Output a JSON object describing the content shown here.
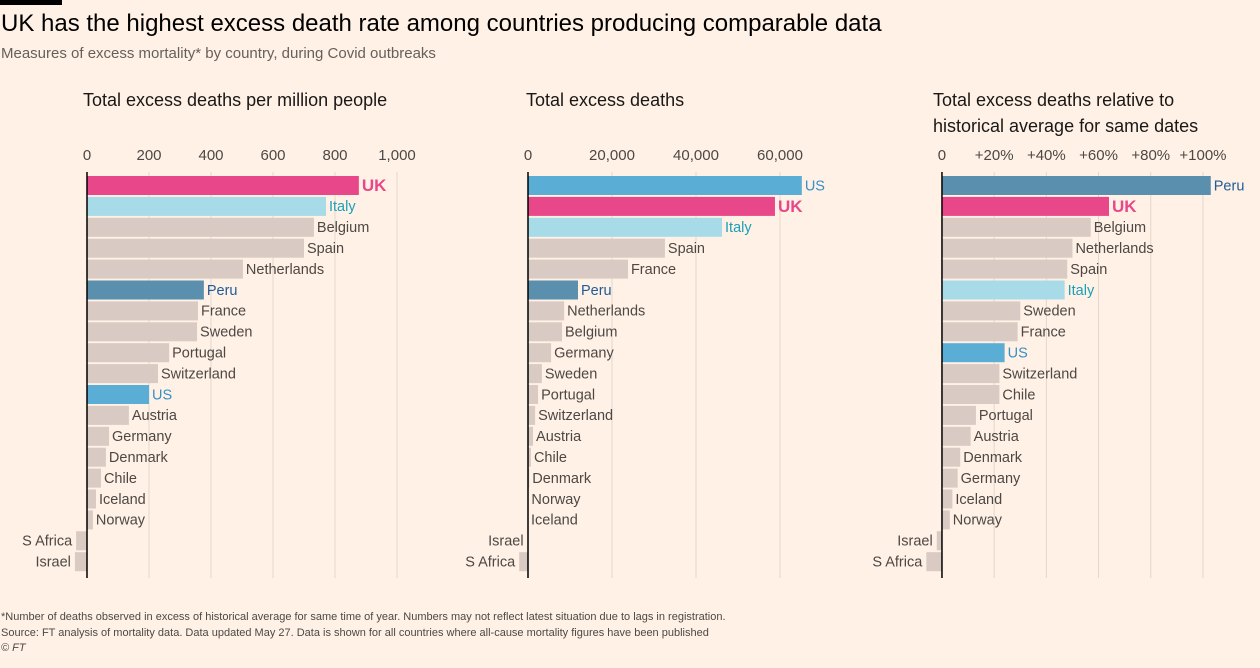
{
  "title": "UK has the highest excess death rate among countries producing comparable data",
  "subtitle": "Measures of excess mortality* by country, during Covid outbreaks",
  "notes": [
    "*Number of deaths observed in excess of historical average for same time of year. Numbers may not reflect latest situation due to lags in registration.",
    "Source: FT analysis of mortality data. Data updated May 27. Data is shown for all countries where all-cause mortality figures have been published",
    "© FT"
  ],
  "default_color": "#d9cbc3",
  "highlight": {
    "UK": {
      "bar": "#e8488a",
      "text": "#e8488a"
    },
    "Italy": {
      "bar": "#a8dbe8",
      "text": "#1aa0b8"
    },
    "Peru": {
      "bar": "#5b8fae",
      "text": "#1f5b99"
    },
    "US": {
      "bar": "#5aaed6",
      "text": "#3591c8"
    }
  },
  "chart_data": [
    {
      "type": "bar",
      "orientation": "horizontal",
      "title": "Total excess deaths per million people",
      "categories": [
        "UK",
        "Italy",
        "Belgium",
        "Spain",
        "Netherlands",
        "Peru",
        "France",
        "Sweden",
        "Portugal",
        "Switzerland",
        "US",
        "Austria",
        "Germany",
        "Denmark",
        "Chile",
        "Iceland",
        "Norway",
        "S Africa",
        "Israel"
      ],
      "values": [
        877,
        771,
        732,
        700,
        503,
        377,
        358,
        355,
        265,
        229,
        200,
        135,
        71,
        61,
        45,
        29,
        19,
        -35,
        -39
      ],
      "xlim": [
        -50,
        1050
      ],
      "xticks": [
        0,
        200,
        400,
        600,
        800,
        {
          "value": 1000,
          "label": "1,000"
        }
      ],
      "grid": true
    },
    {
      "type": "bar",
      "orientation": "horizontal",
      "title": "Total excess deaths",
      "categories": [
        "US",
        "UK",
        "Italy",
        "Spain",
        "France",
        "Peru",
        "Netherlands",
        "Belgium",
        "Germany",
        "Sweden",
        "Portugal",
        "Switzerland",
        "Austria",
        "Chile",
        "Denmark",
        "Norway",
        "Iceland",
        "Israel",
        "S Africa"
      ],
      "values": [
        65200,
        58800,
        46200,
        32600,
        23800,
        11900,
        8600,
        8100,
        5500,
        3300,
        2400,
        1700,
        1200,
        700,
        300,
        100,
        10,
        -100,
        -2100
      ],
      "xlim": [
        -3000,
        65000
      ],
      "xticks": [
        0,
        {
          "value": 20000,
          "label": "20,000"
        },
        {
          "value": 40000,
          "label": "40,000"
        },
        {
          "value": 60000,
          "label": "60,000"
        }
      ],
      "grid": true
    },
    {
      "type": "bar",
      "orientation": "horizontal",
      "title": "Total excess deaths relative to historical average for same dates",
      "categories": [
        "Peru",
        "UK",
        "Belgium",
        "Netherlands",
        "Spain",
        "Italy",
        "Sweden",
        "France",
        "US",
        "Switzerland",
        "Chile",
        "Portugal",
        "Austria",
        "Denmark",
        "Germany",
        "Iceland",
        "Norway",
        "Israel",
        "S Africa"
      ],
      "values": [
        103,
        64,
        57,
        50,
        48,
        47,
        30,
        29,
        24,
        22,
        22,
        13,
        11,
        7,
        6,
        4,
        3,
        -2,
        -6
      ],
      "xlim": [
        -7,
        105
      ],
      "xticks": [
        0,
        {
          "value": 20,
          "label": "+20%"
        },
        {
          "value": 40,
          "label": "+40%"
        },
        {
          "value": 60,
          "label": "+60%"
        },
        {
          "value": 80,
          "label": "+80%"
        },
        {
          "value": 100,
          "label": "+100%"
        }
      ],
      "grid": true
    }
  ]
}
